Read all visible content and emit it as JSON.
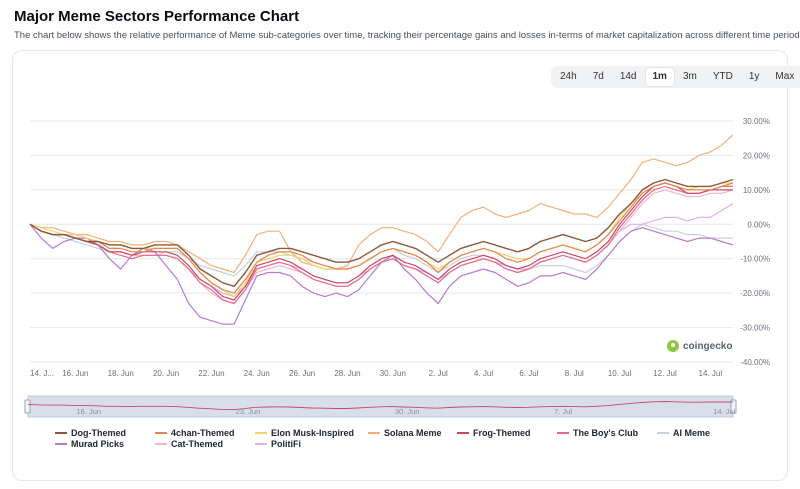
{
  "header": {
    "title": "Major Meme Sectors Performance Chart",
    "subtitle": "The chart below shows the relative performance of Meme sub-categories over time, tracking their percentage gains and losses in-terms of market capitalization across different time periods."
  },
  "ranges": [
    {
      "label": "24h",
      "active": false
    },
    {
      "label": "7d",
      "active": false
    },
    {
      "label": "14d",
      "active": false
    },
    {
      "label": "1m",
      "active": true
    },
    {
      "label": "3m",
      "active": false
    },
    {
      "label": "YTD",
      "active": false
    },
    {
      "label": "1y",
      "active": false
    },
    {
      "label": "Max",
      "active": false
    }
  ],
  "watermark": "coingecko",
  "colors": {
    "grid": "#e6e7ea",
    "axis_text": "#6b7080",
    "navigator_bg": "#d8deea"
  },
  "chart_data": {
    "type": "line",
    "x": [
      0,
      1,
      2,
      3,
      4,
      5,
      6,
      7,
      8,
      9,
      10,
      11,
      12,
      13,
      14,
      15,
      16,
      17,
      18,
      19,
      20,
      21,
      22,
      23,
      24,
      25,
      26,
      27,
      28,
      29,
      30,
      31,
      32,
      33,
      34,
      35,
      36,
      37,
      38,
      39,
      40,
      41,
      42,
      43,
      44,
      45,
      46,
      47,
      48,
      49,
      50,
      51,
      52,
      53,
      54,
      55,
      56,
      57,
      58,
      59,
      60,
      61,
      62
    ],
    "x_tick_labels": [
      {
        "x": 0,
        "label": "14. J..."
      },
      {
        "x": 4,
        "label": "16. Jun"
      },
      {
        "x": 8,
        "label": "18. Jun"
      },
      {
        "x": 12,
        "label": "20. Jun"
      },
      {
        "x": 16,
        "label": "22. Jun"
      },
      {
        "x": 20,
        "label": "24. Jun"
      },
      {
        "x": 24,
        "label": "26. Jun"
      },
      {
        "x": 28,
        "label": "28. Jun"
      },
      {
        "x": 32,
        "label": "30. Jun"
      },
      {
        "x": 36,
        "label": "2. Jul"
      },
      {
        "x": 40,
        "label": "4. Jul"
      },
      {
        "x": 44,
        "label": "6. Jul"
      },
      {
        "x": 48,
        "label": "8. Jul"
      },
      {
        "x": 52,
        "label": "10. Jul"
      },
      {
        "x": 56,
        "label": "12. Jul"
      },
      {
        "x": 60,
        "label": "14. Jul"
      }
    ],
    "ylim": [
      -40,
      30
    ],
    "y_ticks": [
      30,
      20,
      10,
      0,
      -10,
      -20,
      -30,
      -40
    ],
    "y_tick_labels": [
      "30.00%",
      "20.00%",
      "10.00%",
      "0.00%",
      "-10.00%",
      "-20.00%",
      "-30.00%",
      "-40.00%"
    ],
    "grid": true,
    "legend_position": "bottom",
    "navigator": {
      "labels": [
        {
          "x": 4,
          "label": "16. Jun"
        },
        {
          "x": 18,
          "label": "23. Jun"
        },
        {
          "x": 32,
          "label": "30. Jun"
        },
        {
          "x": 46,
          "label": "7. Jul"
        },
        {
          "x": 60,
          "label": "14. Jul"
        }
      ]
    },
    "series": [
      {
        "name": "Dog-Themed",
        "color": "#8a5a3c",
        "values": [
          0,
          -2,
          -3,
          -3,
          -4,
          -5,
          -5,
          -6,
          -6,
          -7,
          -7,
          -6,
          -6,
          -6,
          -9,
          -13,
          -15,
          -17,
          -18,
          -14,
          -9,
          -8,
          -7,
          -7,
          -8,
          -9,
          -10,
          -11,
          -11,
          -10,
          -8,
          -6,
          -5,
          -6,
          -7,
          -9,
          -11,
          -9,
          -7,
          -6,
          -5,
          -6,
          -7,
          -8,
          -7,
          -5,
          -4,
          -3,
          -4,
          -5,
          -4,
          -1,
          3,
          6,
          10,
          12,
          13,
          12,
          11,
          11,
          11,
          12,
          13
        ]
      },
      {
        "name": "4chan-Themed",
        "color": "#e8864a",
        "values": [
          0,
          -2,
          -3,
          -3,
          -4,
          -5,
          -5,
          -7,
          -7,
          -8,
          -8,
          -7,
          -7,
          -7,
          -10,
          -14,
          -17,
          -19,
          -20,
          -16,
          -11,
          -9,
          -8,
          -8,
          -9,
          -11,
          -12,
          -13,
          -13,
          -12,
          -10,
          -8,
          -7,
          -8,
          -9,
          -11,
          -14,
          -11,
          -9,
          -8,
          -7,
          -8,
          -10,
          -11,
          -10,
          -8,
          -7,
          -6,
          -7,
          -8,
          -6,
          -3,
          1,
          5,
          9,
          11,
          12,
          11,
          10,
          10,
          10,
          11,
          12
        ]
      },
      {
        "name": "Elon Musk-Inspired",
        "color": "#f3d36b",
        "values": [
          0,
          -1,
          -2,
          -3,
          -3,
          -4,
          -5,
          -6,
          -6,
          -7,
          -7,
          -7,
          -7,
          -7,
          -10,
          -14,
          -17,
          -19,
          -21,
          -17,
          -11,
          -10,
          -9,
          -9,
          -10,
          -12,
          -13,
          -13,
          -13,
          -12,
          -10,
          -8,
          -7,
          -8,
          -9,
          -11,
          -13,
          -11,
          -9,
          -8,
          -7,
          -8,
          -9,
          -10,
          -10,
          -8,
          -7,
          -6,
          -7,
          -8,
          -6,
          -3,
          2,
          6,
          9,
          11,
          12,
          11,
          10,
          11,
          11,
          12,
          12
        ]
      },
      {
        "name": "Solana Meme",
        "color": "#f5b07a",
        "values": [
          0,
          -1,
          -1,
          -2,
          -3,
          -3,
          -4,
          -5,
          -5,
          -6,
          -6,
          -5,
          -5,
          -6,
          -8,
          -10,
          -12,
          -13,
          -14,
          -9,
          -3,
          -2,
          -2,
          -8,
          -11,
          -12,
          -13,
          -13,
          -12,
          -6,
          -3,
          -1,
          -1,
          -2,
          -3,
          -5,
          -8,
          -3,
          2,
          4,
          5,
          3,
          2,
          3,
          4,
          6,
          5,
          4,
          3,
          3,
          2,
          5,
          9,
          13,
          18,
          19,
          18,
          17,
          18,
          20,
          21,
          23,
          26
        ]
      },
      {
        "name": "Frog-Themed",
        "color": "#c84a62",
        "values": [
          0,
          -2,
          -3,
          -3,
          -4,
          -5,
          -6,
          -8,
          -8,
          -9,
          -8,
          -8,
          -8,
          -9,
          -12,
          -16,
          -18,
          -21,
          -22,
          -18,
          -12,
          -11,
          -10,
          -11,
          -13,
          -15,
          -16,
          -17,
          -17,
          -15,
          -12,
          -10,
          -9,
          -11,
          -12,
          -14,
          -16,
          -13,
          -11,
          -10,
          -9,
          -10,
          -12,
          -13,
          -12,
          -10,
          -9,
          -8,
          -9,
          -10,
          -8,
          -5,
          0,
          4,
          8,
          11,
          12,
          11,
          9,
          9,
          10,
          10,
          10
        ]
      },
      {
        "name": "The Boy's Club",
        "color": "#e86a8a",
        "values": [
          0,
          -2,
          -3,
          -3,
          -4,
          -5,
          -6,
          -8,
          -9,
          -10,
          -9,
          -9,
          -9,
          -10,
          -13,
          -17,
          -19,
          -22,
          -23,
          -19,
          -13,
          -12,
          -11,
          -12,
          -14,
          -16,
          -17,
          -18,
          -18,
          -16,
          -13,
          -11,
          -10,
          -12,
          -13,
          -15,
          -17,
          -14,
          -12,
          -11,
          -10,
          -11,
          -13,
          -14,
          -13,
          -11,
          -10,
          -9,
          -10,
          -11,
          -9,
          -6,
          -1,
          3,
          7,
          10,
          11,
          10,
          9,
          9,
          10,
          11,
          11
        ]
      },
      {
        "name": "AI Meme",
        "color": "#c9cfe2",
        "values": [
          0,
          -2,
          -3,
          -4,
          -5,
          -6,
          -7,
          -8,
          -8,
          -9,
          -9,
          -9,
          -8,
          -8,
          -10,
          -12,
          -13,
          -14,
          -15,
          -12,
          -8,
          -8,
          -8,
          -9,
          -10,
          -11,
          -12,
          -13,
          -13,
          -12,
          -10,
          -8,
          -7,
          -9,
          -10,
          -12,
          -14,
          -12,
          -10,
          -9,
          -9,
          -10,
          -12,
          -13,
          -13,
          -12,
          -12,
          -12,
          -13,
          -14,
          -12,
          -9,
          -5,
          -2,
          0,
          -1,
          -2,
          -2,
          -3,
          -3,
          -4,
          -4,
          -4
        ]
      },
      {
        "name": "Murad Picks",
        "color": "#b97ad6",
        "values": [
          0,
          -4,
          -7,
          -5,
          -4,
          -4,
          -6,
          -10,
          -13,
          -9,
          -7,
          -8,
          -12,
          -16,
          -23,
          -27,
          -28,
          -29,
          -29,
          -22,
          -15,
          -14,
          -14,
          -15,
          -18,
          -20,
          -21,
          -20,
          -21,
          -19,
          -15,
          -11,
          -9,
          -13,
          -16,
          -20,
          -23,
          -18,
          -15,
          -14,
          -13,
          -14,
          -16,
          -18,
          -17,
          -15,
          -15,
          -14,
          -15,
          -16,
          -13,
          -9,
          -5,
          -2,
          -1,
          -2,
          -3,
          -4,
          -5,
          -4,
          -4,
          -5,
          -6
        ]
      },
      {
        "name": "Cat-Themed",
        "color": "#f2b8c6",
        "values": [
          0,
          -2,
          -3,
          -3,
          -4,
          -5,
          -6,
          -8,
          -8,
          -9,
          -9,
          -9,
          -9,
          -10,
          -13,
          -17,
          -20,
          -22,
          -23,
          -19,
          -14,
          -13,
          -12,
          -13,
          -14,
          -16,
          -17,
          -18,
          -18,
          -16,
          -13,
          -11,
          -10,
          -12,
          -13,
          -15,
          -17,
          -14,
          -12,
          -11,
          -10,
          -11,
          -13,
          -14,
          -13,
          -11,
          -10,
          -9,
          -10,
          -11,
          -9,
          -6,
          -2,
          2,
          6,
          9,
          10,
          9,
          8,
          8,
          9,
          9,
          10
        ]
      },
      {
        "name": "PolitiFi",
        "color": "#dcb3ec",
        "values": [
          0,
          -2,
          -3,
          -3,
          -4,
          -5,
          -6,
          -8,
          -8,
          -9,
          -9,
          -9,
          -9,
          -10,
          -13,
          -16,
          -18,
          -20,
          -21,
          -18,
          -13,
          -12,
          -11,
          -12,
          -13,
          -15,
          -16,
          -17,
          -17,
          -15,
          -13,
          -11,
          -10,
          -12,
          -13,
          -14,
          -16,
          -14,
          -12,
          -11,
          -10,
          -11,
          -12,
          -13,
          -13,
          -11,
          -10,
          -9,
          -10,
          -11,
          -9,
          -6,
          -2,
          0,
          0,
          1,
          2,
          2,
          1,
          2,
          2,
          4,
          6
        ]
      }
    ]
  }
}
